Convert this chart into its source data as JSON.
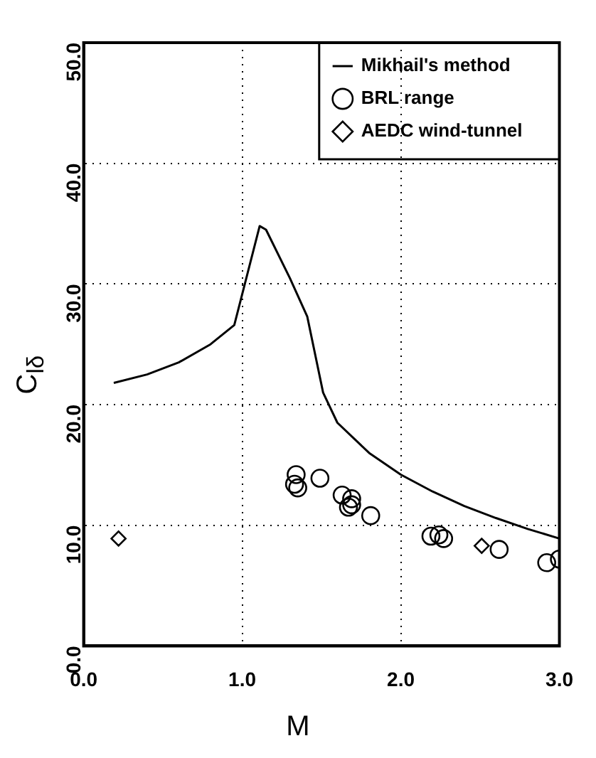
{
  "chart_data": {
    "type": "scatter",
    "xlabel": "M",
    "ylabel": "C$_{lδ}$",
    "xlim": [
      0,
      3
    ],
    "xticks": [
      {
        "value": 0,
        "label": "0.0"
      },
      {
        "value": 1,
        "label": "1.0"
      },
      {
        "value": 2,
        "label": "2.0"
      },
      {
        "value": 3,
        "label": "3.0"
      }
    ],
    "ylim": [
      0,
      50
    ],
    "yticks": [
      {
        "value": 0,
        "label": "0.0"
      },
      {
        "value": 10,
        "label": "10.0"
      },
      {
        "value": 20,
        "label": "20.0"
      },
      {
        "value": 30,
        "label": "30.0"
      },
      {
        "value": 40,
        "label": "40.0"
      },
      {
        "value": 50,
        "label": "50.0"
      }
    ],
    "grid": true,
    "legend": "top right",
    "series": [
      {
        "name": "Mikhail's method",
        "type": "line",
        "marker": "none",
        "color": "#000000",
        "x": [
          0.19,
          0.4,
          0.6,
          0.8,
          0.95,
          1.11,
          1.15,
          1.3,
          1.41,
          1.51,
          1.6,
          1.8,
          2.0,
          2.2,
          2.4,
          2.6,
          2.8,
          3.0
        ],
        "values": [
          21.8,
          22.5,
          23.5,
          25,
          26.6,
          34.8,
          34.5,
          30.5,
          27.3,
          21,
          18.5,
          16,
          14.2,
          12.8,
          11.6,
          10.6,
          9.7,
          8.9
        ]
      },
      {
        "name": "BRL range",
        "marker": "circle",
        "color": "#000000",
        "x": [
          1.34,
          1.33,
          1.35,
          1.49,
          1.63,
          1.69,
          1.67,
          1.69,
          1.81,
          2.19,
          2.24,
          2.27,
          2.62,
          2.92,
          3.0
        ],
        "values": [
          14.2,
          13.4,
          13.1,
          13.9,
          12.5,
          12.2,
          11.5,
          11.7,
          10.8,
          9.1,
          9.2,
          8.9,
          8.0,
          6.9,
          7.2
        ]
      },
      {
        "name": "AEDC wind-tunnel",
        "marker": "diamond",
        "color": "#000000",
        "x": [
          0.22,
          2.51
        ],
        "values": [
          8.9,
          8.3
        ]
      }
    ]
  }
}
